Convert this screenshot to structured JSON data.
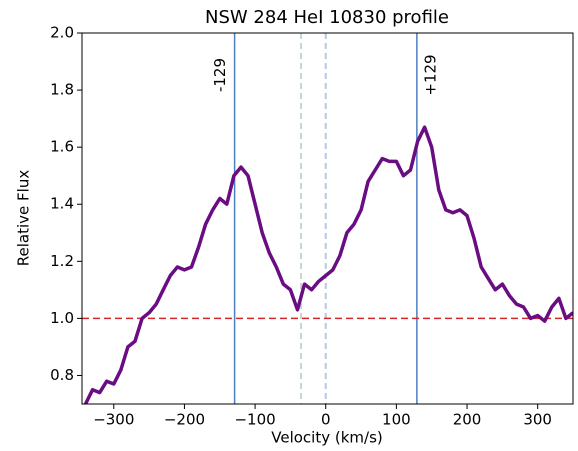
{
  "chart_data": {
    "type": "line",
    "title": "NSW 284 HeI 10830 profile",
    "xlabel": "Velocity (km/s)",
    "ylabel": "Relative Flux",
    "x": [
      -340,
      -330,
      -320,
      -310,
      -300,
      -290,
      -280,
      -270,
      -260,
      -250,
      -240,
      -230,
      -220,
      -210,
      -200,
      -190,
      -180,
      -170,
      -160,
      -150,
      -140,
      -130,
      -120,
      -110,
      -100,
      -90,
      -80,
      -70,
      -60,
      -50,
      -40,
      -30,
      -20,
      -10,
      0,
      10,
      20,
      30,
      40,
      50,
      60,
      70,
      80,
      90,
      100,
      110,
      120,
      130,
      140,
      150,
      160,
      170,
      180,
      190,
      200,
      210,
      220,
      230,
      240,
      250,
      260,
      270,
      280,
      290,
      300,
      310,
      320,
      330,
      340,
      350
    ],
    "values": [
      0.7,
      0.75,
      0.74,
      0.78,
      0.77,
      0.82,
      0.9,
      0.92,
      1.0,
      1.02,
      1.05,
      1.1,
      1.15,
      1.18,
      1.17,
      1.18,
      1.25,
      1.33,
      1.38,
      1.42,
      1.4,
      1.5,
      1.53,
      1.5,
      1.4,
      1.3,
      1.23,
      1.18,
      1.12,
      1.1,
      1.03,
      1.12,
      1.1,
      1.13,
      1.15,
      1.17,
      1.22,
      1.3,
      1.33,
      1.38,
      1.48,
      1.52,
      1.56,
      1.55,
      1.55,
      1.5,
      1.52,
      1.62,
      1.67,
      1.6,
      1.45,
      1.38,
      1.37,
      1.38,
      1.36,
      1.28,
      1.18,
      1.14,
      1.1,
      1.12,
      1.08,
      1.05,
      1.04,
      1.0,
      1.01,
      0.99,
      1.04,
      1.07,
      1.0,
      1.02
    ],
    "color": "#6a0d83",
    "xlim": [
      -345,
      350
    ],
    "ylim": [
      0.7,
      2.0
    ],
    "xticks": [
      {
        "value": -300,
        "label": "−300"
      },
      {
        "value": -200,
        "label": "−200"
      },
      {
        "value": -100,
        "label": "−100"
      },
      0,
      100,
      200,
      300
    ],
    "yticks": [
      0.8,
      {
        "value": 1,
        "label": "1.0"
      },
      1.2,
      1.4,
      1.6,
      1.8,
      {
        "value": 2,
        "label": "2.0"
      }
    ],
    "vlines": [
      {
        "x": -129,
        "color": "#4c7fbf",
        "label": "-129"
      },
      {
        "x": 129,
        "color": "#4c7fbf",
        "label": "+129"
      },
      {
        "x": -35,
        "color": "#c5d9cf",
        "style": "dashed"
      },
      {
        "x": 0,
        "color": "#b5c9e6",
        "style": "dashed"
      }
    ],
    "hlines": [
      {
        "y": 1,
        "color": "#d62728",
        "style": "dashed"
      }
    ]
  }
}
